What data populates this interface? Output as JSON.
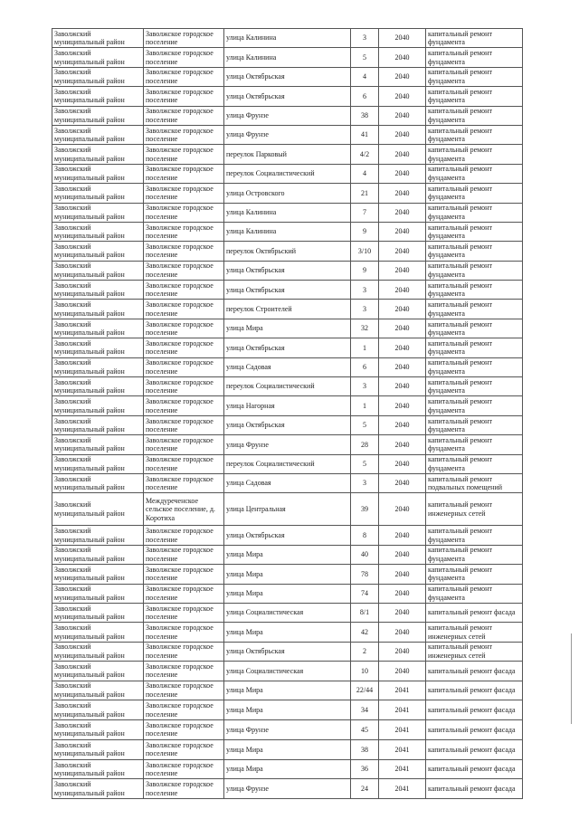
{
  "table": {
    "rows": [
      {
        "district": "Заволжский муниципальный район",
        "settlement": "Заволжское городское поселение",
        "street": "улица Калинина",
        "house": "3",
        "year": "2040",
        "work": "капитальный ремонт фундамента"
      },
      {
        "district": "Заволжский муниципальный район",
        "settlement": "Заволжское городское поселение",
        "street": "улица Калинина",
        "house": "5",
        "year": "2040",
        "work": "капитальный ремонт фундамента"
      },
      {
        "district": "Заволжский муниципальный район",
        "settlement": "Заволжское городское поселение",
        "street": "улица Октябрьская",
        "house": "4",
        "year": "2040",
        "work": "капитальный ремонт фундамента"
      },
      {
        "district": "Заволжский муниципальный район",
        "settlement": "Заволжское городское поселение",
        "street": "улица Октябрьская",
        "house": "6",
        "year": "2040",
        "work": "капитальный ремонт фундамента"
      },
      {
        "district": "Заволжский муниципальный район",
        "settlement": "Заволжское городское поселение",
        "street": "улица Фрунзе",
        "house": "38",
        "year": "2040",
        "work": "капитальный ремонт фундамента"
      },
      {
        "district": "Заволжский муниципальный район",
        "settlement": "Заволжское городское поселение",
        "street": "улица Фрунзе",
        "house": "41",
        "year": "2040",
        "work": "капитальный ремонт фундамента"
      },
      {
        "district": "Заволжский муниципальный район",
        "settlement": "Заволжское городское поселение",
        "street": "переулок Парковый",
        "house": "4/2",
        "year": "2040",
        "work": "капитальный ремонт фундамента"
      },
      {
        "district": "Заволжский муниципальный район",
        "settlement": "Заволжское городское поселение",
        "street": "переулок Социалистический",
        "house": "4",
        "year": "2040",
        "work": "капитальный ремонт фундамента"
      },
      {
        "district": "Заволжский муниципальный район",
        "settlement": "Заволжское городское поселение",
        "street": "улица Островского",
        "house": "21",
        "year": "2040",
        "work": "капитальный ремонт фундамента"
      },
      {
        "district": "Заволжский муниципальный район",
        "settlement": "Заволжское городское поселение",
        "street": "улица Калинина",
        "house": "7",
        "year": "2040",
        "work": "капитальный ремонт фундамента"
      },
      {
        "district": "Заволжский муниципальный район",
        "settlement": "Заволжское городское поселение",
        "street": "улица Калинина",
        "house": "9",
        "year": "2040",
        "work": "капитальный ремонт фундамента"
      },
      {
        "district": "Заволжский муниципальный район",
        "settlement": "Заволжское городское поселение",
        "street": "переулок  Октябрьский",
        "house": "3/10",
        "year": "2040",
        "work": "капитальный ремонт фундамента"
      },
      {
        "district": "Заволжский муниципальный район",
        "settlement": "Заволжское городское поселение",
        "street": "улица Октябрьская",
        "house": "9",
        "year": "2040",
        "work": "капитальный ремонт фундамента"
      },
      {
        "district": "Заволжский муниципальный район",
        "settlement": "Заволжское городское поселение",
        "street": "улица Октябрьская",
        "house": "3",
        "year": "2040",
        "work": "капитальный ремонт фундамента"
      },
      {
        "district": "Заволжский муниципальный район",
        "settlement": "Заволжское городское поселение",
        "street": "переулок Строителей",
        "house": "3",
        "year": "2040",
        "work": "капитальный ремонт фундамента"
      },
      {
        "district": "Заволжский муниципальный район",
        "settlement": "Заволжское городское поселение",
        "street": "улица Мира",
        "house": "32",
        "year": "2040",
        "work": "капитальный ремонт фундамента"
      },
      {
        "district": "Заволжский муниципальный район",
        "settlement": "Заволжское городское поселение",
        "street": "улица Октябрьская",
        "house": "1",
        "year": "2040",
        "work": "капитальный ремонт фундамента"
      },
      {
        "district": "Заволжский муниципальный район",
        "settlement": "Заволжское городское поселение",
        "street": "улица Садовая",
        "house": "6",
        "year": "2040",
        "work": "капитальный ремонт фундамента"
      },
      {
        "district": "Заволжский муниципальный район",
        "settlement": "Заволжское городское поселение",
        "street": "переулок Социалистический",
        "house": "3",
        "year": "2040",
        "work": "капитальный ремонт фундамента"
      },
      {
        "district": "Заволжский муниципальный район",
        "settlement": "Заволжское городское поселение",
        "street": "улица Нагорная",
        "house": "1",
        "year": "2040",
        "work": "капитальный ремонт фундамента"
      },
      {
        "district": "Заволжский муниципальный район",
        "settlement": "Заволжское городское поселение",
        "street": "улица Октябрьская",
        "house": "5",
        "year": "2040",
        "work": "капитальный ремонт фундамента"
      },
      {
        "district": "Заволжский муниципальный район",
        "settlement": "Заволжское городское поселение",
        "street": "улица Фрунзе",
        "house": "28",
        "year": "2040",
        "work": "капитальный ремонт фундамента"
      },
      {
        "district": "Заволжский муниципальный район",
        "settlement": "Заволжское городское поселение",
        "street": "переулок Социалистический",
        "house": "5",
        "year": "2040",
        "work": "капитальный ремонт фундамента"
      },
      {
        "district": "Заволжский муниципальный район",
        "settlement": "Заволжское городское поселение",
        "street": "улица Садовая",
        "house": "3",
        "year": "2040",
        "work": "капитальный ремонт подвальных помещений"
      },
      {
        "district": "Заволжский муниципальный район",
        "settlement": "Междуреченское сельское поселение, д. Коротиха",
        "street": "улица Центральная",
        "house": "39",
        "year": "2040",
        "work": "капитальный ремонт инженерных сетей"
      },
      {
        "district": "Заволжский муниципальный район",
        "settlement": "Заволжское городское поселение",
        "street": "улица Октябрьская",
        "house": "8",
        "year": "2040",
        "work": "капитальный ремонт фундамента"
      },
      {
        "district": "Заволжский муниципальный район",
        "settlement": "Заволжское городское поселение",
        "street": "улица Мира",
        "house": "40",
        "year": "2040",
        "work": "капитальный ремонт фундамента"
      },
      {
        "district": "Заволжский муниципальный район",
        "settlement": "Заволжское городское поселение",
        "street": "улица Мира",
        "house": "78",
        "year": "2040",
        "work": "капитальный ремонт фундамента"
      },
      {
        "district": "Заволжский муниципальный район",
        "settlement": "Заволжское городское поселение",
        "street": "улица Мира",
        "house": "74",
        "year": "2040",
        "work": "капитальный ремонт фундамента"
      },
      {
        "district": "Заволжский муниципальный район",
        "settlement": "Заволжское городское поселение",
        "street": "улица Социалистическая",
        "house": "8/1",
        "year": "2040",
        "work": "капитальный ремонт фасада"
      },
      {
        "district": "Заволжский муниципальный район",
        "settlement": "Заволжское городское поселение",
        "street": "улица Мира",
        "house": "42",
        "year": "2040",
        "work": "капитальный ремонт инженерных сетей"
      },
      {
        "district": "Заволжский муниципальный район",
        "settlement": "Заволжское городское поселение",
        "street": "улица Октябрьская",
        "house": "2",
        "year": "2040",
        "work": "капитальный ремонт инженерных сетей"
      },
      {
        "district": "Заволжский муниципальный район",
        "settlement": "Заволжское городское поселение",
        "street": "улица Социалистическая",
        "house": "10",
        "year": "2040",
        "work": "капитальный ремонт фасада"
      },
      {
        "district": "Заволжский муниципальный район",
        "settlement": "Заволжское городское поселение",
        "street": "улица Мира",
        "house": "22/44",
        "year": "2041",
        "work": "капитальный ремонт фасада"
      },
      {
        "district": "Заволжский муниципальный район",
        "settlement": "Заволжское городское поселение",
        "street": "улица Мира",
        "house": "34",
        "year": "2041",
        "work": "капитальный ремонт фасада"
      },
      {
        "district": "Заволжский муниципальный район",
        "settlement": "Заволжское городское поселение",
        "street": "улица Фрунзе",
        "house": "45",
        "year": "2041",
        "work": "капитальный ремонт фасада"
      },
      {
        "district": "Заволжский муниципальный район",
        "settlement": "Заволжское городское поселение",
        "street": "улица Мира",
        "house": "38",
        "year": "2041",
        "work": "капитальный ремонт фасада"
      },
      {
        "district": "Заволжский муниципальный район",
        "settlement": "Заволжское городское поселение",
        "street": "улица Мира",
        "house": "36",
        "year": "2041",
        "work": "капитальный ремонт фасада"
      },
      {
        "district": "Заволжский муниципальный район",
        "settlement": "Заволжское городское поселение",
        "street": "улица Фрунзе",
        "house": "24",
        "year": "2041",
        "work": "капитальный ремонт фасада"
      }
    ]
  }
}
